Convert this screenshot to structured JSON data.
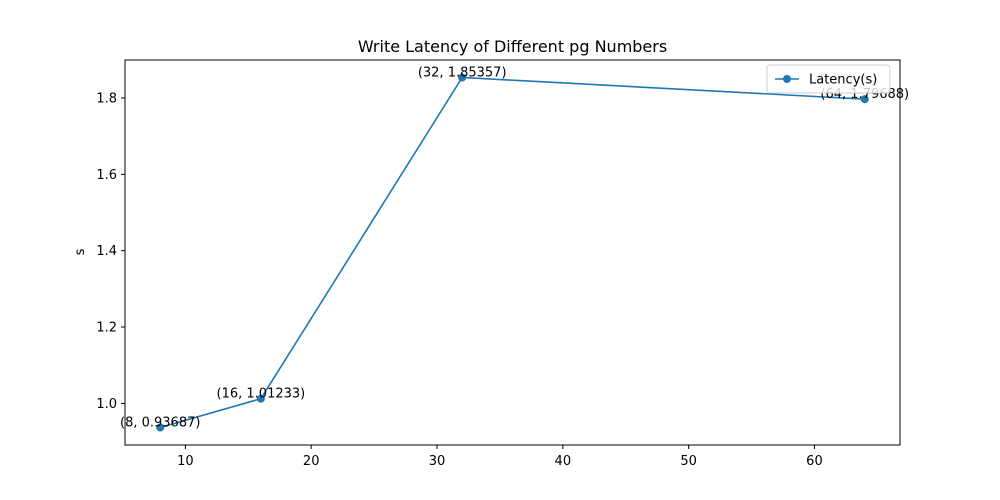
{
  "chart_data": {
    "type": "line",
    "title": "Write Latency of Different pg Numbers",
    "xlabel": "",
    "ylabel": "s",
    "xlim": [
      5.2,
      66.8
    ],
    "ylim": [
      0.89103,
      1.89941
    ],
    "x_ticks": [
      10,
      20,
      30,
      40,
      50,
      60
    ],
    "y_ticks": [
      1.0,
      1.2,
      1.4,
      1.6,
      1.8
    ],
    "x_tick_labels": [
      "10",
      "20",
      "30",
      "40",
      "50",
      "60"
    ],
    "y_tick_labels": [
      "1.0",
      "1.2",
      "1.4",
      "1.6",
      "1.8"
    ],
    "grid": false,
    "legend_position": "upper-right",
    "series": [
      {
        "name": "Latency(s)",
        "color": "#1f77b4",
        "marker": "circle",
        "x": [
          8,
          16,
          32,
          64
        ],
        "y": [
          0.93687,
          1.01233,
          1.85357,
          1.79688
        ],
        "labels": [
          "(8, 0.93687)",
          "(16, 1.01233)",
          "(32, 1.85357)",
          "(64, 1.79688)"
        ]
      }
    ]
  }
}
